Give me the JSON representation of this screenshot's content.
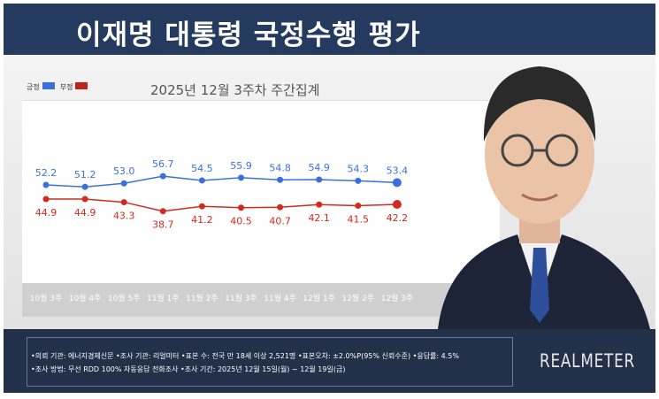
{
  "header": {
    "title": "이재명 대통령 국정수행 평가"
  },
  "chart_data": {
    "type": "line",
    "title": "2025년 12월 3주차 주간집계",
    "categories": [
      "10월 3주",
      "10월 4주",
      "10월 5주",
      "11월 1주",
      "11월 2주",
      "11월 3주",
      "11월 4주",
      "12월 1주",
      "12월 2주",
      "12월 3주"
    ],
    "series": [
      {
        "name": "긍정",
        "color": "#3b6fe0",
        "values": [
          52.2,
          51.2,
          53.0,
          56.7,
          54.5,
          55.9,
          54.8,
          54.9,
          54.3,
          53.4
        ]
      },
      {
        "name": "부정",
        "color": "#d12a1f",
        "values": [
          44.9,
          44.9,
          43.3,
          38.7,
          41.2,
          40.5,
          40.7,
          42.1,
          41.5,
          42.2
        ]
      }
    ],
    "legend": "top-left",
    "grid": false
  },
  "footer": {
    "line1": "•의뢰 기관: 에너지경제신문 •조사 기관: 리얼미터 •표본 수: 전국 만 18세 이상 2,521명 •표본오차: ±2.0%P(95% 신뢰수준) •응답률: 4.5%",
    "line2": "•조사 방법: 무선 RDD 100% 자동응답 전화조사 •조사 기간: 2025년 12월 15일(월) ~ 12월 19일(금)",
    "logo": "REALMETER"
  }
}
